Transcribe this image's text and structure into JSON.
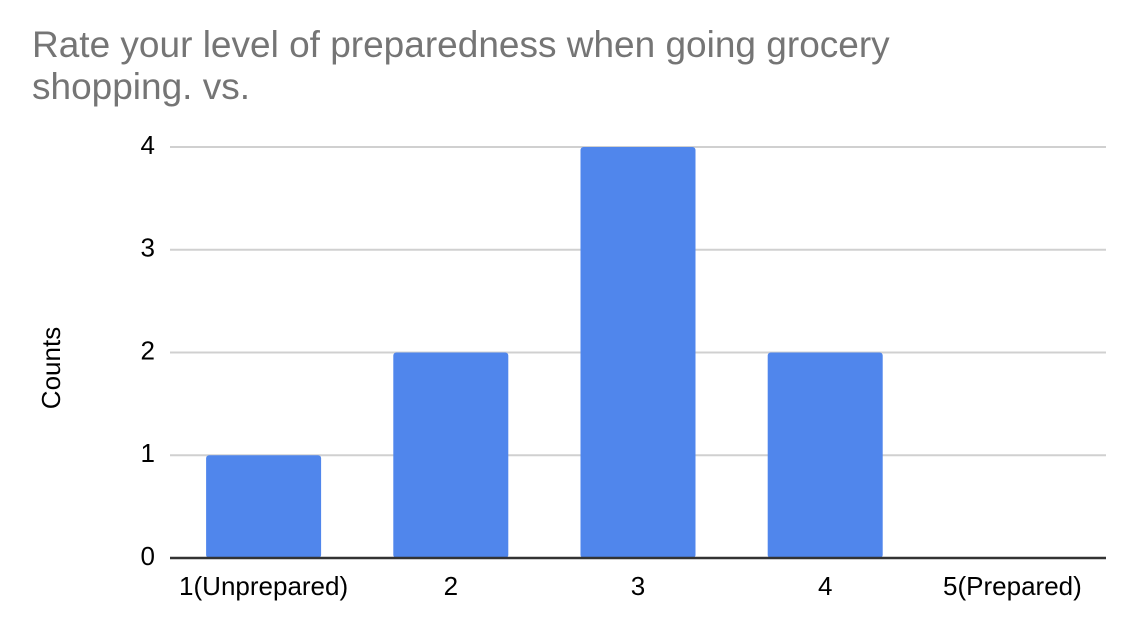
{
  "chart_data": {
    "type": "bar",
    "title_lines": [
      "Rate your level of preparedness when going grocery",
      "shopping. vs."
    ],
    "xlabel": "",
    "ylabel": "Counts",
    "categories": [
      "1(Unprepared)",
      "2",
      "3",
      "4",
      "5(Prepared)"
    ],
    "values": [
      1,
      2,
      4,
      2,
      0
    ],
    "ylim": [
      0,
      4
    ],
    "yticks": [
      "0",
      "1",
      "2",
      "3",
      "4"
    ],
    "grid": true,
    "bar_color": "#5086EC",
    "grid_color": "#D0D0D0",
    "axis_color": "#333333"
  }
}
